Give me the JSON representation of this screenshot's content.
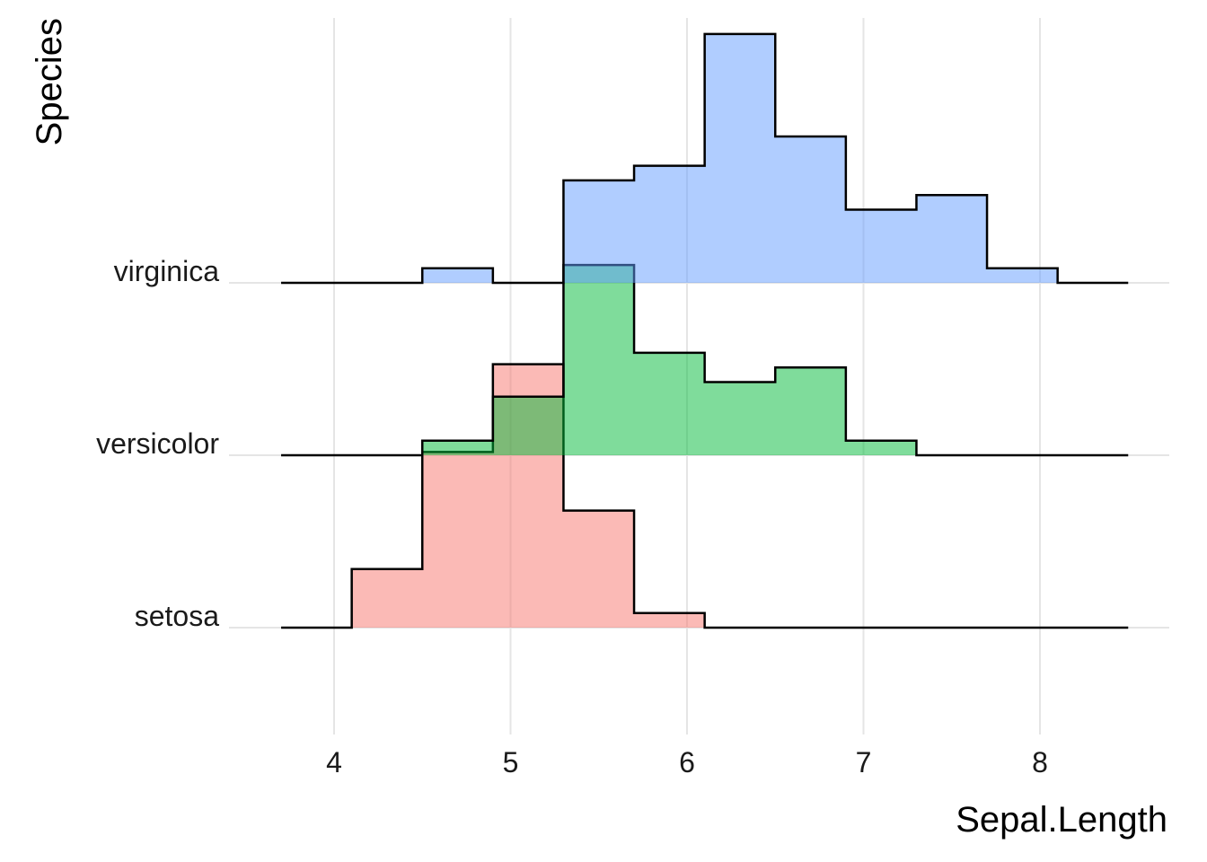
{
  "chart_data": {
    "type": "ridgeline-histogram",
    "xlabel": "Sepal.Length",
    "ylabel": "Species",
    "x_ticks": [
      4,
      5,
      6,
      7,
      8
    ],
    "xlim": [
      3.7,
      8.5
    ],
    "bin_width": 0.4,
    "bin_edges": [
      3.7,
      4.1,
      4.5,
      4.9,
      5.3,
      5.7,
      6.1,
      6.5,
      6.9,
      7.3,
      7.7,
      8.1,
      8.5
    ],
    "grid": true,
    "legend": "none",
    "series": [
      {
        "name": "setosa",
        "color": "#F8766D",
        "counts": [
          0,
          4,
          12,
          18,
          8,
          1,
          0,
          0,
          0,
          0,
          0,
          0
        ]
      },
      {
        "name": "versicolor",
        "color": "#00BA38",
        "counts": [
          0,
          0,
          1,
          4,
          13,
          7,
          5,
          6,
          1,
          0,
          0,
          0
        ]
      },
      {
        "name": "virginica",
        "color": "#619CFF",
        "counts": [
          0,
          0,
          1,
          0,
          7,
          8,
          17,
          10,
          5,
          6,
          1,
          0
        ]
      }
    ]
  }
}
